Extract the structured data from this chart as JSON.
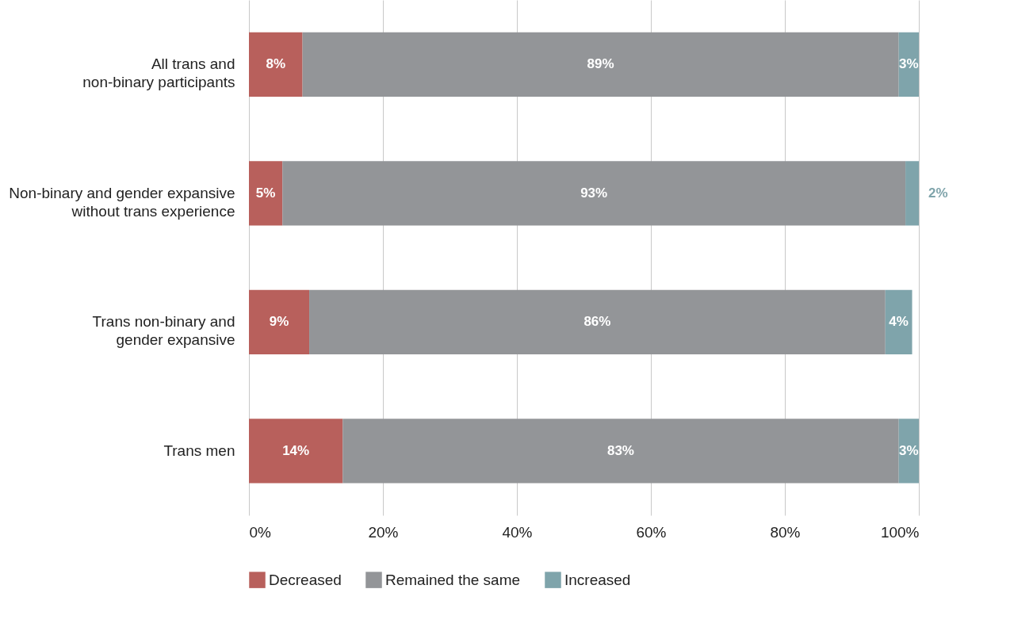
{
  "chart_data": {
    "type": "bar",
    "orientation": "horizontal",
    "stacked": true,
    "categories": [
      "All trans and non-binary participants",
      "Non-binary and gender expansive without trans experience",
      "Trans non-binary and gender expansive",
      "Trans men"
    ],
    "series": [
      {
        "name": "Decreased",
        "color": "#b8605c",
        "values": [
          8,
          5,
          9,
          14
        ],
        "value_labels": [
          "8%",
          "5%",
          "9%",
          "14%"
        ]
      },
      {
        "name": "Remained the same",
        "color": "#939598",
        "values": [
          89,
          93,
          86,
          83
        ],
        "value_labels": [
          "89%",
          "93%",
          "86%",
          "83%"
        ]
      },
      {
        "name": "Increased",
        "color": "#7fa4ab",
        "values": [
          3,
          2,
          4,
          3
        ],
        "value_labels": [
          "3%",
          "2%",
          "4%",
          "3%"
        ]
      }
    ],
    "xlim": [
      0,
      100
    ],
    "xticks": [
      {
        "value": 0,
        "label": "0%"
      },
      {
        "value": 20,
        "label": "20%"
      },
      {
        "value": 40,
        "label": "40%"
      },
      {
        "value": 60,
        "label": "60%"
      },
      {
        "value": 80,
        "label": "80%"
      },
      {
        "value": 100,
        "label": "100%"
      }
    ],
    "grid": "x",
    "legend": "bottom"
  }
}
